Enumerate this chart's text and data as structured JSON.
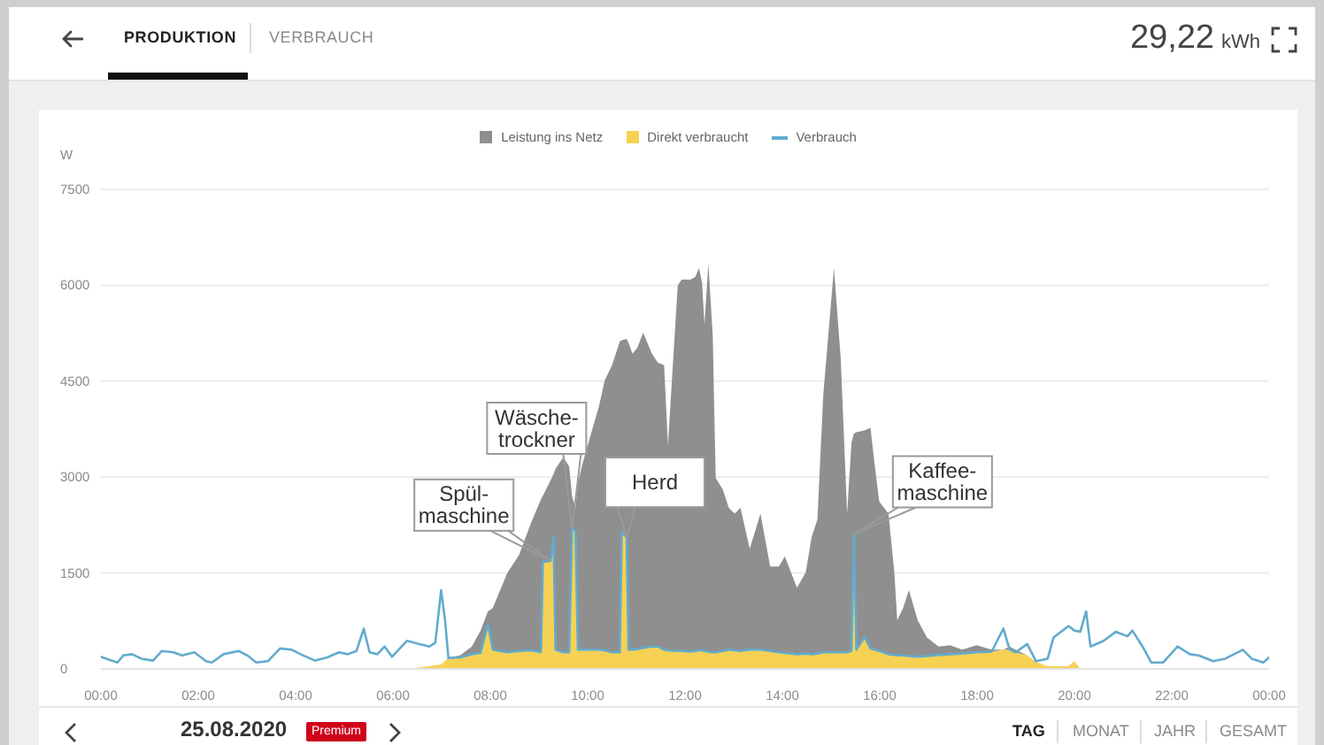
{
  "chart_data": {
    "type": "area",
    "stacked": true,
    "x": [
      0,
      0.22,
      0.34,
      0.46,
      0.64,
      0.83,
      1.07,
      1.25,
      1.49,
      1.67,
      1.92,
      2.16,
      2.28,
      2.52,
      2.83,
      3.01,
      3.19,
      3.43,
      3.68,
      3.92,
      4.16,
      4.4,
      4.65,
      4.89,
      5.07,
      5.25,
      5.4,
      5.52,
      5.68,
      5.83,
      5.98,
      6.29,
      6.53,
      6.75,
      6.87,
      6.99,
      7.07,
      7.14,
      7.38,
      7.62,
      7.8,
      7.95,
      8.05,
      8.35,
      8.59,
      8.84,
      9.04,
      9.08,
      9.24,
      9.3,
      9.34,
      9.5,
      9.62,
      9.68,
      9.75,
      9.8,
      9.88,
      10.05,
      10.23,
      10.35,
      10.5,
      10.66,
      10.7,
      10.8,
      10.84,
      10.92,
      11.02,
      11.14,
      11.32,
      11.44,
      11.57,
      11.65,
      11.85,
      11.93,
      12.11,
      12.21,
      12.29,
      12.35,
      12.4,
      12.48,
      12.57,
      12.63,
      12.78,
      12.9,
      13.02,
      13.14,
      13.33,
      13.55,
      13.75,
      13.93,
      14.05,
      14.3,
      14.48,
      14.6,
      14.72,
      14.84,
      15.06,
      15.2,
      15.33,
      15.42,
      15.47,
      15.52,
      15.69,
      15.81,
      15.9,
      15.99,
      16.18,
      16.3,
      16.36,
      16.48,
      16.6,
      16.78,
      16.97,
      17.21,
      17.45,
      17.69,
      17.99,
      18.3,
      18.54,
      18.67,
      18.79,
      19.03,
      19.21,
      19.45,
      19.57,
      19.88,
      20,
      20.12,
      20.24,
      20.33,
      20.6,
      20.85,
      21.09,
      21.19,
      21.4,
      21.58,
      21.82,
      22.12,
      22.37,
      22.55,
      22.85,
      23.1,
      23.46,
      23.64,
      23.88,
      24
    ],
    "series": [
      {
        "name": "Direkt verbraucht",
        "color": "#f7d154",
        "values": [
          0,
          0,
          0,
          0,
          0,
          0,
          0,
          0,
          0,
          0,
          0,
          0,
          0,
          0,
          0,
          0,
          0,
          0,
          0,
          0,
          0,
          0,
          0,
          0,
          0,
          0,
          0,
          0,
          0,
          0,
          0,
          0,
          20,
          40,
          60,
          70,
          120,
          170,
          180,
          230,
          250,
          700,
          300,
          260,
          280,
          290,
          260,
          1670,
          1690,
          2060,
          300,
          260,
          260,
          2200,
          2150,
          300,
          300,
          300,
          300,
          290,
          260,
          260,
          2140,
          2060,
          300,
          300,
          310,
          330,
          350,
          350,
          300,
          290,
          280,
          280,
          270,
          280,
          290,
          290,
          280,
          270,
          260,
          260,
          280,
          300,
          290,
          280,
          300,
          300,
          280,
          260,
          250,
          230,
          240,
          230,
          240,
          260,
          260,
          260,
          260,
          280,
          2110,
          300,
          500,
          320,
          300,
          280,
          230,
          220,
          210,
          210,
          200,
          190,
          200,
          220,
          230,
          240,
          260,
          270,
          300,
          300,
          260,
          210,
          110,
          40,
          40,
          40,
          120,
          0,
          0,
          0,
          0,
          0,
          0,
          0,
          0,
          0,
          0,
          0,
          0,
          0,
          0,
          0,
          0,
          0,
          0,
          0
        ]
      },
      {
        "name": "Leistung ins Netz",
        "color": "#8f8f8f",
        "values": [
          0,
          0,
          0,
          0,
          0,
          0,
          0,
          0,
          0,
          0,
          0,
          0,
          0,
          0,
          0,
          0,
          0,
          0,
          0,
          0,
          0,
          0,
          0,
          0,
          0,
          0,
          0,
          0,
          0,
          0,
          0,
          0,
          0,
          0,
          0,
          0,
          0,
          10,
          30,
          120,
          350,
          200,
          650,
          1240,
          1500,
          2000,
          2390,
          1040,
          1260,
          990,
          2830,
          3050,
          2910,
          500,
          370,
          2600,
          2870,
          3330,
          3800,
          4220,
          4490,
          4860,
          3000,
          3100,
          4800,
          4630,
          4710,
          4930,
          4580,
          4440,
          4450,
          3210,
          5720,
          5810,
          5820,
          5850,
          5980,
          5750,
          5110,
          6070,
          4950,
          2730,
          2520,
          2220,
          2140,
          2240,
          1580,
          2130,
          1320,
          1340,
          1510,
          1040,
          1270,
          1830,
          2100,
          4020,
          6010,
          4580,
          2170,
          3260,
          1570,
          3400,
          3230,
          3450,
          2870,
          2340,
          2200,
          1290,
          550,
          740,
          1030,
          570,
          290,
          130,
          140,
          60,
          110,
          30,
          0,
          50,
          40,
          0,
          0,
          0,
          0,
          0,
          0,
          0,
          0,
          0,
          0,
          0,
          0,
          0,
          0,
          0,
          0,
          0,
          0,
          0,
          0,
          0,
          0,
          0,
          0,
          0
        ]
      },
      {
        "name": "Verbrauch",
        "type": "line",
        "color": "#62abcd",
        "values": [
          190,
          130,
          100,
          210,
          230,
          160,
          130,
          280,
          260,
          210,
          260,
          120,
          100,
          230,
          280,
          210,
          100,
          120,
          320,
          300,
          210,
          130,
          180,
          260,
          230,
          280,
          630,
          260,
          230,
          350,
          190,
          440,
          390,
          350,
          410,
          1230,
          760,
          170,
          180,
          230,
          250,
          700,
          300,
          260,
          280,
          290,
          260,
          1670,
          1690,
          2060,
          300,
          260,
          260,
          2200,
          2150,
          300,
          300,
          300,
          300,
          290,
          260,
          260,
          2140,
          2060,
          300,
          300,
          310,
          330,
          350,
          350,
          300,
          290,
          280,
          280,
          270,
          280,
          290,
          290,
          280,
          270,
          260,
          260,
          280,
          300,
          290,
          280,
          300,
          300,
          280,
          260,
          250,
          230,
          240,
          230,
          240,
          260,
          260,
          260,
          260,
          280,
          2110,
          300,
          500,
          320,
          300,
          280,
          230,
          220,
          210,
          210,
          200,
          190,
          200,
          220,
          230,
          240,
          260,
          270,
          630,
          300,
          260,
          390,
          120,
          160,
          490,
          670,
          600,
          580,
          900,
          350,
          440,
          580,
          510,
          600,
          350,
          100,
          100,
          350,
          230,
          210,
          120,
          160,
          300,
          160,
          100,
          180
        ]
      }
    ],
    "ylabel": "W",
    "xlim": [
      0,
      24
    ],
    "xticks": [
      {
        "value": 0,
        "label": "00:00"
      },
      {
        "value": 2,
        "label": "02:00"
      },
      {
        "value": 4,
        "label": "04:00"
      },
      {
        "value": 6,
        "label": "06:00"
      },
      {
        "value": 8,
        "label": "08:00"
      },
      {
        "value": 10,
        "label": "10:00"
      },
      {
        "value": 12,
        "label": "12:00"
      },
      {
        "value": 14,
        "label": "14:00"
      },
      {
        "value": 16,
        "label": "16:00"
      },
      {
        "value": 18,
        "label": "18:00"
      },
      {
        "value": 20,
        "label": "20:00"
      },
      {
        "value": 22,
        "label": "22:00"
      },
      {
        "value": 24,
        "label": "00:00"
      }
    ],
    "ylim": [
      0,
      7500
    ],
    "yticks": [
      0,
      1500,
      3000,
      4500,
      6000,
      7500
    ],
    "grid": "y",
    "legend": "top",
    "annotations": [
      {
        "text": "Spül-\nmaschine",
        "x": 9.24,
        "y": 1690
      },
      {
        "text": "Wäsche-\ntrockner",
        "x": 9.68,
        "y": 2200
      },
      {
        "text": "Herd",
        "x": 10.8,
        "y": 2060
      },
      {
        "text": "Kaffee-\nmaschine",
        "x": 15.47,
        "y": 2110
      },
      "PRODUKTION",
      "VERBRAUCH",
      "29,22 kWh",
      "25.08.2020",
      "Premium",
      "TAG",
      "MONAT",
      "JAHR",
      "GESAMT"
    ]
  }
}
